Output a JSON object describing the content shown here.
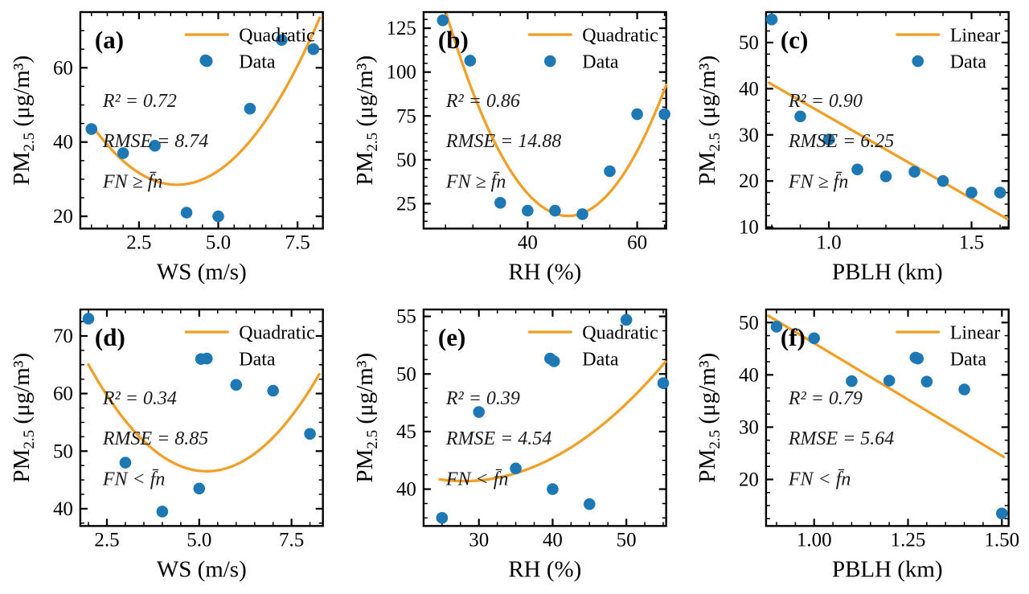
{
  "figure": {
    "background": "#ffffff",
    "colors": {
      "fit_line": "#F0A028",
      "data_marker": "#1E78B4",
      "axis": "#000000",
      "text": "#000000"
    }
  },
  "chart_data": [
    {
      "id": "a",
      "panel_label": "(a)",
      "type": "scatter",
      "fit_type": "quadratic",
      "legend": [
        "Quadratic",
        "Data"
      ],
      "annotation": [
        "R² = 0.72",
        "RMSE = 8.74",
        "FN ≥ f̄n"
      ],
      "xlabel": "WS (m/s)",
      "ylabel": [
        {
          "t": "PM"
        },
        {
          "t": "2.5",
          "sub": true
        },
        {
          "t": " (μg/m³)"
        }
      ],
      "xlim": [
        0.65,
        8.3
      ],
      "ylim": [
        16.7,
        75.0
      ],
      "x_ticks": {
        "values": [
          2.5,
          5.0,
          7.5
        ],
        "labels": [
          "2.5",
          "5.0",
          "7.5"
        ],
        "minor_step": 0.5
      },
      "y_ticks": {
        "values": [
          20,
          40,
          60
        ],
        "labels": [
          "20",
          "40",
          "60"
        ],
        "minor_step": 5
      },
      "points": [
        [
          1.0,
          43.5
        ],
        [
          2.0,
          37.0
        ],
        [
          3.0,
          39.0
        ],
        [
          4.0,
          21.0
        ],
        [
          4.6,
          62.0
        ],
        [
          5.0,
          20.0
        ],
        [
          6.0,
          49.0
        ],
        [
          7.0,
          67.5
        ],
        [
          8.0,
          65.0
        ]
      ],
      "curve": {
        "kind": "quadratic",
        "a": 2.22,
        "h": 3.7,
        "k": 28.5,
        "x0": 1.0,
        "x1": 8.2
      }
    },
    {
      "id": "b",
      "panel_label": "(b)",
      "type": "scatter",
      "fit_type": "quadratic",
      "legend": [
        "Quadratic",
        "Data"
      ],
      "annotation": [
        "R² = 0.86",
        "RMSE = 14.88",
        "FN ≥ f̄n"
      ],
      "xlabel": "RH (%)",
      "ylabel": [
        {
          "t": "PM"
        },
        {
          "t": "2.5",
          "sub": true
        },
        {
          "t": " (μg/m³)"
        }
      ],
      "xlim": [
        21.0,
        65.3
      ],
      "ylim": [
        10.8,
        134.2
      ],
      "x_ticks": {
        "values": [
          40,
          60
        ],
        "labels": [
          "40",
          "60"
        ],
        "minor_step": 5
      },
      "y_ticks": {
        "values": [
          25,
          50,
          75,
          100,
          125
        ],
        "labels": [
          "25",
          "50",
          "75",
          "100",
          "125"
        ],
        "minor_step": 5
      },
      "points": [
        [
          24.5,
          129.5
        ],
        [
          29.5,
          106.5
        ],
        [
          35.0,
          25.5
        ],
        [
          40.0,
          21.0
        ],
        [
          45.0,
          21.0
        ],
        [
          50.0,
          19.0
        ],
        [
          55.0,
          43.5
        ],
        [
          60.0,
          76.0
        ],
        [
          65.0,
          76.0
        ]
      ],
      "curve": {
        "kind": "quadratic",
        "a": 0.233,
        "h": 47.4,
        "k": 18.0,
        "x0": 25.2,
        "x1": 65.3
      }
    },
    {
      "id": "c",
      "panel_label": "(c)",
      "type": "scatter",
      "fit_type": "linear",
      "legend": [
        "Linear",
        "Data"
      ],
      "annotation": [
        "R² = 0.90",
        "RMSE = 6.25",
        "FN ≥ f̄n"
      ],
      "xlabel": "PBLH (km)",
      "ylabel": [
        {
          "t": "PM"
        },
        {
          "t": "2.5",
          "sub": true
        },
        {
          "t": " (μg/m³)"
        }
      ],
      "xlim": [
        0.78,
        1.63
      ],
      "ylim": [
        9.7,
        56.6
      ],
      "x_ticks": {
        "values": [
          1.0,
          1.5
        ],
        "labels": [
          "1.0",
          "1.5"
        ],
        "minor_step": 0.1
      },
      "y_ticks": {
        "values": [
          10,
          20,
          30,
          40,
          50
        ],
        "labels": [
          "10",
          "20",
          "30",
          "40",
          "50"
        ],
        "minor_step": 2.5
      },
      "points": [
        [
          0.8,
          55.0
        ],
        [
          0.9,
          34.0
        ],
        [
          1.0,
          29.0
        ],
        [
          1.1,
          22.5
        ],
        [
          1.2,
          21.0
        ],
        [
          1.3,
          22.0
        ],
        [
          1.4,
          20.0
        ],
        [
          1.5,
          17.5
        ],
        [
          1.6,
          17.5
        ]
      ],
      "curve": {
        "kind": "linear",
        "x0": 0.79,
        "y0": 41.3,
        "x1": 1.625,
        "y1": 11.8
      }
    },
    {
      "id": "d",
      "panel_label": "(d)",
      "type": "scatter",
      "fit_type": "quadratic",
      "legend": [
        "Quadratic",
        "Data"
      ],
      "annotation": [
        "R² = 0.34",
        "RMSE = 8.85",
        "FN < f̄n"
      ],
      "xlabel": "WS (m/s)",
      "ylabel": [
        {
          "t": "PM"
        },
        {
          "t": "2.5",
          "sub": true
        },
        {
          "t": " (μg/m³)"
        }
      ],
      "xlim": [
        1.78,
        8.35
      ],
      "ylim": [
        37.0,
        74.6
      ],
      "x_ticks": {
        "values": [
          2.5,
          5.0,
          7.5
        ],
        "labels": [
          "2.5",
          "5.0",
          "7.5"
        ],
        "minor_step": 0.5
      },
      "y_ticks": {
        "values": [
          40,
          50,
          60,
          70
        ],
        "labels": [
          "40",
          "50",
          "60",
          "70"
        ],
        "minor_step": 2.5
      },
      "points": [
        [
          2.0,
          73.0
        ],
        [
          3.0,
          48.0
        ],
        [
          4.0,
          39.5
        ],
        [
          5.0,
          43.5
        ],
        [
          5.05,
          66.0
        ],
        [
          6.0,
          61.5
        ],
        [
          7.0,
          60.5
        ],
        [
          8.0,
          53.0
        ]
      ],
      "curve": {
        "kind": "quadratic",
        "a": 1.81,
        "h": 5.2,
        "k": 46.5,
        "x0": 2.0,
        "x1": 8.25
      }
    },
    {
      "id": "e",
      "panel_label": "(e)",
      "type": "scatter",
      "fit_type": "quadratic",
      "legend": [
        "Quadratic",
        "Data"
      ],
      "annotation": [
        "R² = 0.39",
        "RMSE = 4.54",
        "FN < f̄n"
      ],
      "xlabel": "RH (%)",
      "ylabel": [
        {
          "t": "PM"
        },
        {
          "t": "2.5",
          "sub": true
        },
        {
          "t": " (μg/m³)"
        }
      ],
      "xlim": [
        22.5,
        55.4
      ],
      "ylim": [
        36.8,
        55.6
      ],
      "x_ticks": {
        "values": [
          30,
          40,
          50
        ],
        "labels": [
          "30",
          "40",
          "50"
        ],
        "minor_step": 2.5
      },
      "y_ticks": {
        "values": [
          40,
          45,
          50,
          55
        ],
        "labels": [
          "40",
          "45",
          "50",
          "55"
        ],
        "minor_step": 1.25
      },
      "points": [
        [
          25.0,
          37.5
        ],
        [
          30.0,
          46.7
        ],
        [
          35.0,
          41.8
        ],
        [
          40.0,
          40.0
        ],
        [
          40.2,
          51.1
        ],
        [
          45.0,
          38.7
        ],
        [
          50.0,
          54.7
        ],
        [
          55.0,
          49.2
        ]
      ],
      "curve": {
        "kind": "quadratic",
        "a": 0.0139,
        "h": 28.0,
        "k": 40.7,
        "x0": 24.7,
        "x1": 55.3
      }
    },
    {
      "id": "f",
      "panel_label": "(f)",
      "type": "scatter",
      "fit_type": "linear",
      "legend": [
        "Linear",
        "Data"
      ],
      "annotation": [
        "R² = 0.79",
        "RMSE = 5.64",
        "FN < f̄n"
      ],
      "xlabel": "PBLH (km)",
      "ylabel": [
        {
          "t": "PM"
        },
        {
          "t": "2.5",
          "sub": true
        },
        {
          "t": " (μg/m³)"
        }
      ],
      "xlim": [
        0.872,
        1.518
      ],
      "ylim": [
        11.1,
        52.5
      ],
      "x_ticks": {
        "values": [
          1.0,
          1.25,
          1.5
        ],
        "labels": [
          "1.00",
          "1.25",
          "1.50"
        ],
        "minor_step": 0.05
      },
      "y_ticks": {
        "values": [
          20,
          30,
          40,
          50
        ],
        "labels": [
          "20",
          "30",
          "40",
          "50"
        ],
        "minor_step": 2.5
      },
      "points": [
        [
          0.9,
          49.2
        ],
        [
          1.0,
          47.0
        ],
        [
          1.1,
          38.8
        ],
        [
          1.2,
          38.9
        ],
        [
          1.27,
          43.3
        ],
        [
          1.3,
          38.7
        ],
        [
          1.4,
          37.2
        ],
        [
          1.5,
          13.5
        ]
      ],
      "curve": {
        "kind": "linear",
        "x0": 0.878,
        "y0": 51.3,
        "x1": 1.505,
        "y1": 24.3
      }
    }
  ]
}
